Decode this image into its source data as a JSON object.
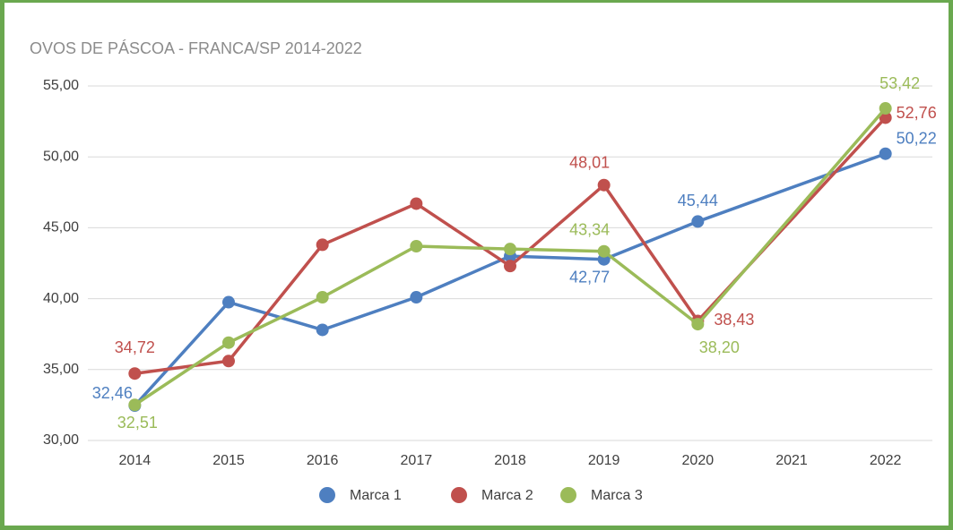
{
  "chart_data": {
    "type": "line",
    "title": "OVOS DE PÁSCOA - FRANCA/SP 2014-2022",
    "x": [
      2014,
      2015,
      2016,
      2017,
      2018,
      2019,
      2020,
      2022
    ],
    "xlim": [
      2013.5,
      2022.5
    ],
    "xticks": [
      2014,
      2015,
      2016,
      2017,
      2018,
      2019,
      2020,
      2021,
      2022
    ],
    "ylim": [
      30,
      55
    ],
    "yticks": [
      {
        "value": 30,
        "label": "30,00"
      },
      {
        "value": 35,
        "label": "35,00"
      },
      {
        "value": 40,
        "label": "40,00"
      },
      {
        "value": 45,
        "label": "45,00"
      },
      {
        "value": 50,
        "label": "50,00"
      },
      {
        "value": 55,
        "label": "55,00"
      }
    ],
    "grid": true,
    "legend": "bottom",
    "series": [
      {
        "name": "Marca 1",
        "color": "#4e7fc0",
        "values": [
          32.46,
          39.75,
          37.8,
          40.1,
          43.0,
          42.77,
          45.44,
          50.22
        ],
        "value_labels": [
          "32,46",
          null,
          null,
          null,
          null,
          "42,77",
          "45,44",
          "50,22"
        ]
      },
      {
        "name": "Marca 2",
        "color": "#c0504d",
        "values": [
          34.72,
          35.6,
          43.8,
          46.7,
          42.3,
          48.01,
          38.43,
          52.76
        ],
        "value_labels": [
          "34,72",
          null,
          null,
          null,
          null,
          "48,01",
          "38,43",
          "52,76"
        ]
      },
      {
        "name": "Marca 3",
        "color": "#9bbb59",
        "values": [
          32.51,
          36.9,
          40.1,
          43.7,
          43.5,
          43.34,
          38.2,
          53.42
        ],
        "value_labels": [
          "32,51",
          null,
          null,
          null,
          null,
          "43,34",
          "38,20",
          "53,42"
        ]
      }
    ]
  }
}
